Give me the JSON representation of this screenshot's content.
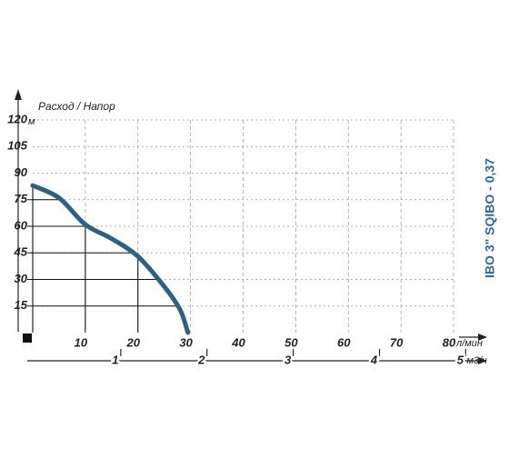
{
  "chart_data": {
    "type": "line",
    "title": "IBO 3\" SQIBO - 0,37",
    "axis_title": "Расход / Напор",
    "y_unit": "м",
    "x_unit": "л/мин",
    "x2_unit": "м3/ч",
    "x": [
      0,
      5,
      10,
      15,
      20,
      25,
      28,
      29.5
    ],
    "series": [
      {
        "color": "#2b6283",
        "values": [
          83,
          76,
          61,
          53,
          43,
          26,
          13,
          0
        ]
      }
    ],
    "xlim": [
      0,
      80
    ],
    "xticks": [
      10,
      20,
      30,
      40,
      50,
      60,
      70,
      80
    ],
    "ylim": [
      0,
      120
    ],
    "yticks": [
      15,
      30,
      45,
      60,
      75,
      90,
      105,
      120
    ],
    "x2lim": [
      0,
      4.88
    ],
    "x2ticks": [
      1,
      2,
      3,
      4,
      5
    ],
    "grid": true
  }
}
